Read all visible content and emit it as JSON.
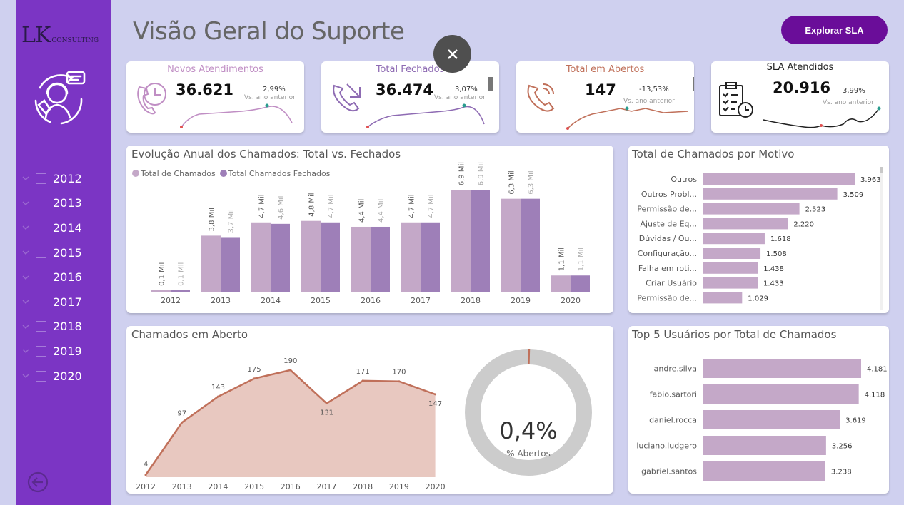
{
  "brand": {
    "logo_main": "LK",
    "logo_sub": "CONSULTING"
  },
  "sidebar": {
    "years": [
      "2012",
      "2013",
      "2014",
      "2015",
      "2016",
      "2017",
      "2018",
      "2019",
      "2020"
    ]
  },
  "header": {
    "title": "Visão Geral do Suporte",
    "sla_button": "Explorar SLA"
  },
  "kpis": [
    {
      "title": "Novos Atendimentos",
      "value": "36.621",
      "pct": "2,99%",
      "sub": "Vs. ano anterior",
      "color": "#c08ec4"
    },
    {
      "title": "Total Fechados",
      "value": "36.474",
      "pct": "3,07%",
      "sub": "Vs. ano anterior",
      "color": "#8e6bb3"
    },
    {
      "title": "Total em Abertos",
      "value": "147",
      "pct": "-13,53%",
      "sub": "Vs. ano anterior",
      "color": "#c0705a"
    },
    {
      "title": "SLA Atendidos",
      "value": "20.916",
      "pct": "3,99%",
      "sub": "Vs. ano anterior",
      "color": "#222222"
    }
  ],
  "panels": {
    "annual": "Evolução Anual dos Chamados: Total vs. Fechados",
    "motivo": "Total de Chamados por Motivo",
    "aberto": "Chamados em Aberto",
    "top5": "Top 5 Usuários por Total de Chamados"
  },
  "donut": {
    "value": "0,4%",
    "label": "% Abertos",
    "fraction": 0.004
  },
  "colors": {
    "sidebar": "#7b35c4",
    "total": "#c4a8c8",
    "closed": "#9e7fb8",
    "area_fill": "#e8c8c0",
    "area_line": "#c0705a",
    "donut_bg": "#cccccc"
  },
  "chart_data": [
    {
      "type": "bar",
      "title": "Evolução Anual dos Chamados: Total vs. Fechados",
      "categories": [
        "2012",
        "2013",
        "2014",
        "2015",
        "2016",
        "2017",
        "2018",
        "2019",
        "2020"
      ],
      "series": [
        {
          "name": "Total de Chamados",
          "values": [
            0.1,
            3.8,
            4.7,
            4.8,
            4.4,
            4.7,
            6.9,
            6.3,
            1.1
          ],
          "labels": [
            "0,1 Mil",
            "3,8 Mil",
            "4,7 Mil",
            "4,8 Mil",
            "4,4 Mil",
            "4,7 Mil",
            "6,9 Mil",
            "6,3 Mil",
            "1,1 Mil"
          ]
        },
        {
          "name": "Total Chamados Fechados",
          "values": [
            0.1,
            3.7,
            4.6,
            4.7,
            4.4,
            4.7,
            6.9,
            6.3,
            1.1
          ],
          "labels": [
            "0,1 Mil",
            "3,7 Mil",
            "4,6 Mil",
            "4,7 Mil",
            "4,4 Mil",
            "4,7 Mil",
            "6,9 Mil",
            "6,3 Mil",
            "1,1 Mil"
          ]
        }
      ],
      "legend": "top-left"
    },
    {
      "type": "bar",
      "orientation": "horizontal",
      "title": "Total de Chamados por Motivo",
      "categories": [
        "Outros",
        "Outros Probl...",
        "Permissão de...",
        "Ajuste de Eq...",
        "Dúvidas / Ou...",
        "Configuração...",
        "Falha em roti...",
        "Criar Usuário",
        "Permissão de..."
      ],
      "values": [
        3963,
        3509,
        2523,
        2220,
        1618,
        1508,
        1438,
        1433,
        1029
      ],
      "labels": [
        "3.963",
        "3.509",
        "2.523",
        "2.220",
        "1.618",
        "1.508",
        "1.438",
        "1.433",
        "1.029"
      ]
    },
    {
      "type": "area",
      "title": "Chamados em Aberto",
      "x": [
        "2012",
        "2013",
        "2014",
        "2015",
        "2016",
        "2017",
        "2018",
        "2019",
        "2020"
      ],
      "values": [
        4,
        97,
        143,
        175,
        190,
        131,
        171,
        170,
        147
      ]
    },
    {
      "type": "bar",
      "orientation": "horizontal",
      "title": "Top 5 Usuários por Total de Chamados",
      "categories": [
        "andre.silva",
        "fabio.sartori",
        "daniel.rocca",
        "luciano.ludgero",
        "gabriel.santos"
      ],
      "values": [
        4181,
        4118,
        3619,
        3256,
        3238
      ],
      "labels": [
        "4.181",
        "4.118",
        "3.619",
        "3.256",
        "3.238"
      ]
    }
  ]
}
